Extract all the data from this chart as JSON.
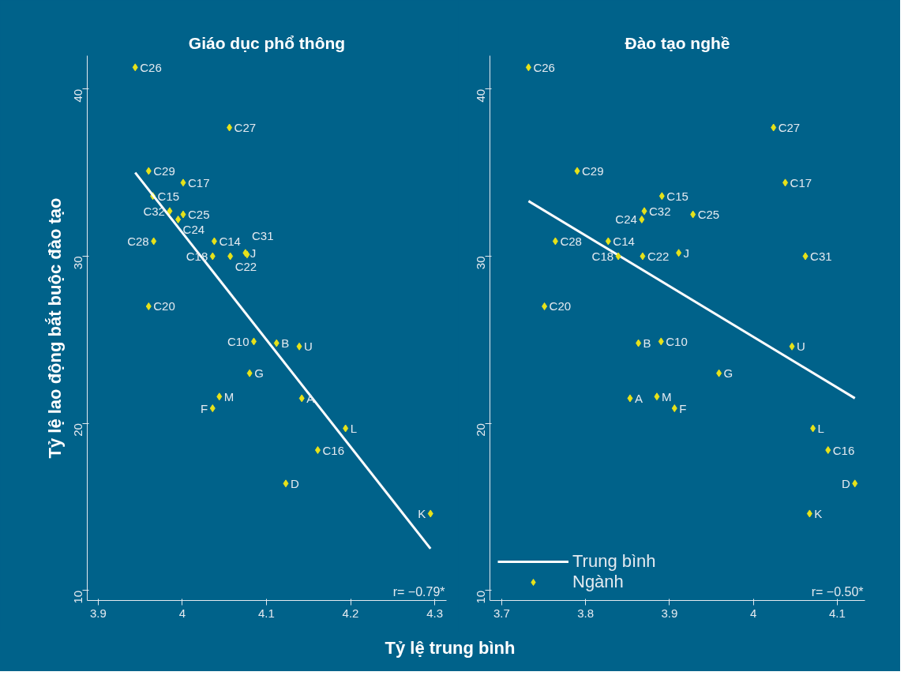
{
  "chart_data": [
    {
      "type": "scatter",
      "title": "Giáo dục phổ thông",
      "ylabel": "Tỷ lệ lao động bắt buộc đào tạo",
      "xlabel": "Tỷ lệ trung bình",
      "xlim": [
        3.887,
        4.314
      ],
      "ylim": [
        9.4,
        42.0
      ],
      "xticks": [
        3.9,
        4,
        4.1,
        4.2,
        4.3
      ],
      "yticks": [
        10,
        20,
        30,
        40
      ],
      "grid": false,
      "legend": false,
      "series": [
        {
          "marker": "diamond",
          "color": "#e6e21a",
          "x": [
            3.944,
            4.056,
            3.96,
            4.001,
            3.965,
            3.985,
            4.001,
            3.995,
            3.966,
            4.038,
            4.036,
            4.057,
            4.075,
            4.077,
            3.96,
            4.085,
            4.112,
            4.139,
            4.08,
            4.044,
            4.036,
            4.142,
            4.194,
            4.161,
            4.123,
            4.295
          ],
          "values": [
            41.3,
            37.7,
            35.1,
            34.4,
            33.6,
            32.7,
            32.5,
            32.2,
            30.9,
            30.9,
            30.0,
            30.0,
            30.2,
            30.1,
            27.0,
            24.9,
            24.8,
            24.6,
            23.0,
            21.6,
            20.9,
            21.5,
            19.7,
            18.4,
            16.4,
            14.6
          ]
        },
        {
          "type": "line",
          "color": "#ffffff",
          "x": [
            3.944,
            4.295
          ],
          "values": [
            35.0,
            12.5
          ]
        }
      ],
      "annotations": [
        {
          "text": "C26",
          "x": 3.944,
          "y": 41.3
        },
        {
          "text": "C27",
          "x": 4.056,
          "y": 37.7
        },
        {
          "text": "C29",
          "x": 3.96,
          "y": 35.1
        },
        {
          "text": "C17",
          "x": 4.001,
          "y": 34.4
        },
        {
          "text": "C15",
          "x": 3.965,
          "y": 33.6
        },
        {
          "text": "C32",
          "x": 3.985,
          "y": 32.7
        },
        {
          "text": "C25",
          "x": 4.001,
          "y": 32.5
        },
        {
          "text": "C24",
          "x": 3.995,
          "y": 32.2
        },
        {
          "text": "C28",
          "x": 3.966,
          "y": 30.9
        },
        {
          "text": "C14",
          "x": 4.038,
          "y": 30.9
        },
        {
          "text": "C18",
          "x": 4.036,
          "y": 30.0
        },
        {
          "text": "C22",
          "x": 4.057,
          "y": 30.0
        },
        {
          "text": "J",
          "x": 4.075,
          "y": 30.2
        },
        {
          "text": "C31",
          "x": 4.077,
          "y": 30.1
        },
        {
          "text": "C20",
          "x": 3.96,
          "y": 27.0
        },
        {
          "text": "C10",
          "x": 4.085,
          "y": 24.9
        },
        {
          "text": "B",
          "x": 4.112,
          "y": 24.8
        },
        {
          "text": "U",
          "x": 4.139,
          "y": 24.6
        },
        {
          "text": "G",
          "x": 4.08,
          "y": 23.0
        },
        {
          "text": "M",
          "x": 4.044,
          "y": 21.6
        },
        {
          "text": "F",
          "x": 4.036,
          "y": 20.9
        },
        {
          "text": "A",
          "x": 4.142,
          "y": 21.5
        },
        {
          "text": "L",
          "x": 4.194,
          "y": 19.7
        },
        {
          "text": "C16",
          "x": 4.161,
          "y": 18.4
        },
        {
          "text": "D",
          "x": 4.123,
          "y": 16.4
        },
        {
          "text": "K",
          "x": 4.295,
          "y": 14.6
        },
        "r= −0.79*"
      ]
    },
    {
      "type": "scatter",
      "title": "Đào tạo nghề",
      "xlim": [
        3.686,
        4.133
      ],
      "ylim": [
        9.4,
        42.0
      ],
      "xticks": [
        3.7,
        3.8,
        3.9,
        4,
        4.1
      ],
      "yticks": [
        10,
        20,
        30,
        40
      ],
      "grid": false,
      "legend": "bottom left",
      "series": [
        {
          "type": "line",
          "name": "Trung bình",
          "color": "#ffffff",
          "x": [
            3.732,
            4.121
          ],
          "values": [
            33.3,
            21.5
          ]
        },
        {
          "marker": "diamond",
          "name": "Ngành",
          "color": "#e6e21a",
          "x": [
            3.732,
            4.024,
            3.79,
            4.038,
            3.891,
            3.87,
            3.867,
            3.928,
            3.764,
            3.827,
            3.839,
            3.868,
            3.911,
            4.062,
            3.751,
            3.863,
            3.89,
            4.046,
            3.959,
            3.853,
            3.885,
            3.906,
            4.071,
            4.089,
            4.121,
            4.067
          ],
          "values": [
            41.3,
            37.7,
            35.1,
            34.4,
            33.6,
            32.7,
            32.2,
            32.5,
            30.9,
            30.9,
            30.0,
            30.0,
            30.2,
            30.0,
            27.0,
            24.8,
            24.9,
            24.6,
            23.0,
            21.5,
            21.6,
            20.9,
            19.7,
            18.4,
            16.4,
            14.6
          ]
        }
      ],
      "annotations": [
        {
          "text": "C26",
          "x": 3.732,
          "y": 41.3
        },
        {
          "text": "C27",
          "x": 4.024,
          "y": 37.7
        },
        {
          "text": "C29",
          "x": 3.79,
          "y": 35.1
        },
        {
          "text": "C17",
          "x": 4.038,
          "y": 34.4
        },
        {
          "text": "C15",
          "x": 3.891,
          "y": 33.6
        },
        {
          "text": "C32",
          "x": 3.87,
          "y": 32.7
        },
        {
          "text": "C24",
          "x": 3.867,
          "y": 32.2
        },
        {
          "text": "C25",
          "x": 3.928,
          "y": 32.5
        },
        {
          "text": "C28",
          "x": 3.764,
          "y": 30.9
        },
        {
          "text": "C14",
          "x": 3.827,
          "y": 30.9
        },
        {
          "text": "C18",
          "x": 3.839,
          "y": 30.0
        },
        {
          "text": "C22",
          "x": 3.868,
          "y": 30.0
        },
        {
          "text": "J",
          "x": 3.911,
          "y": 30.2
        },
        {
          "text": "C31",
          "x": 4.062,
          "y": 30.0
        },
        {
          "text": "C20",
          "x": 3.751,
          "y": 27.0
        },
        {
          "text": "B",
          "x": 3.863,
          "y": 24.8
        },
        {
          "text": "C10",
          "x": 3.89,
          "y": 24.9
        },
        {
          "text": "U",
          "x": 4.046,
          "y": 24.6
        },
        {
          "text": "G",
          "x": 3.959,
          "y": 23.0
        },
        {
          "text": "A",
          "x": 3.853,
          "y": 21.5
        },
        {
          "text": "M",
          "x": 3.885,
          "y": 21.6
        },
        {
          "text": "F",
          "x": 3.906,
          "y": 20.9
        },
        {
          "text": "L",
          "x": 4.071,
          "y": 19.7
        },
        {
          "text": "C16",
          "x": 4.089,
          "y": 18.4
        },
        {
          "text": "D",
          "x": 4.121,
          "y": 16.4
        },
        {
          "text": "K",
          "x": 4.067,
          "y": 14.6
        },
        "r= −0.50*"
      ]
    }
  ]
}
